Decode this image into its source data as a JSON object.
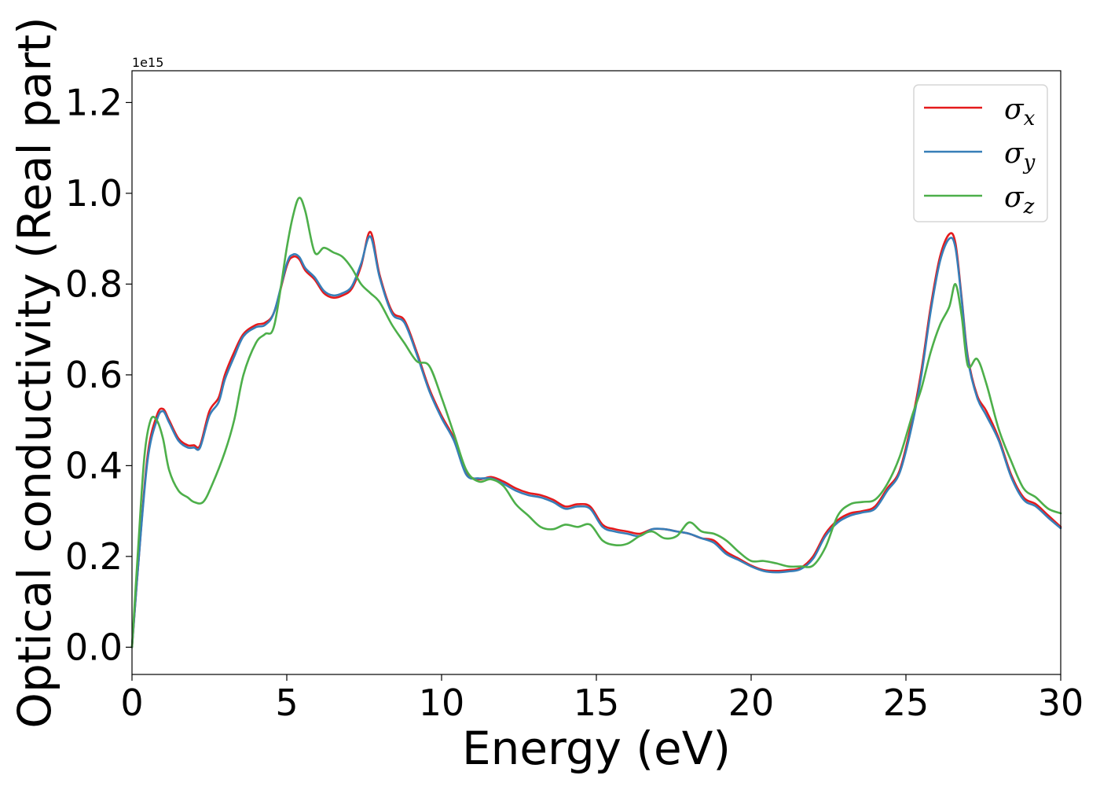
{
  "chart_data": {
    "type": "line",
    "title": "",
    "xlabel": "Energy (eV)",
    "ylabel": "Optical conductivity (Real part)",
    "y_offset_label": "1e15",
    "xlim": [
      0,
      30
    ],
    "ylim": [
      -0.06,
      1.27
    ],
    "xticks": [
      0,
      5,
      10,
      15,
      20,
      25,
      30
    ],
    "yticks": [
      0.0,
      0.2,
      0.4,
      0.6,
      0.8,
      1.0,
      1.2
    ],
    "xtick_labels": [
      "0",
      "5",
      "10",
      "15",
      "20",
      "25",
      "30"
    ],
    "ytick_labels": [
      "0.0",
      "0.2",
      "0.4",
      "0.6",
      "0.8",
      "1.0",
      "1.2"
    ],
    "grid": false,
    "legend_position": "top-right",
    "series": [
      {
        "name": "σx",
        "legend_symbol": "σ",
        "legend_subscript": "x",
        "color": "#e41a1c",
        "x": [
          0,
          0.2,
          0.5,
          0.8,
          1.0,
          1.2,
          1.5,
          1.8,
          2.0,
          2.2,
          2.5,
          2.8,
          3.0,
          3.3,
          3.6,
          4.0,
          4.3,
          4.6,
          5.0,
          5.2,
          5.4,
          5.6,
          5.9,
          6.2,
          6.5,
          6.8,
          7.1,
          7.4,
          7.7,
          8.0,
          8.4,
          8.8,
          9.2,
          9.6,
          10.0,
          10.4,
          10.8,
          11.2,
          11.6,
          12.0,
          12.4,
          12.8,
          13.2,
          13.6,
          14.0,
          14.4,
          14.8,
          15.2,
          15.6,
          16.0,
          16.4,
          16.8,
          17.2,
          17.6,
          18.0,
          18.4,
          18.8,
          19.2,
          19.6,
          20.0,
          20.4,
          20.8,
          21.2,
          21.6,
          22.0,
          22.4,
          22.8,
          23.2,
          23.6,
          24.0,
          24.4,
          24.8,
          25.2,
          25.5,
          25.8,
          26.1,
          26.4,
          26.6,
          26.8,
          27.0,
          27.3,
          27.6,
          28.0,
          28.4,
          28.8,
          29.2,
          29.6,
          30.0
        ],
        "y": [
          0.0,
          0.18,
          0.42,
          0.51,
          0.525,
          0.5,
          0.46,
          0.445,
          0.445,
          0.445,
          0.52,
          0.55,
          0.6,
          0.65,
          0.69,
          0.71,
          0.715,
          0.74,
          0.84,
          0.86,
          0.855,
          0.83,
          0.81,
          0.78,
          0.77,
          0.775,
          0.79,
          0.84,
          0.915,
          0.82,
          0.74,
          0.72,
          0.65,
          0.57,
          0.51,
          0.46,
          0.385,
          0.37,
          0.375,
          0.365,
          0.35,
          0.34,
          0.335,
          0.325,
          0.31,
          0.315,
          0.31,
          0.27,
          0.26,
          0.255,
          0.25,
          0.26,
          0.26,
          0.255,
          0.25,
          0.24,
          0.235,
          0.21,
          0.195,
          0.18,
          0.17,
          0.168,
          0.17,
          0.175,
          0.2,
          0.25,
          0.28,
          0.295,
          0.3,
          0.31,
          0.35,
          0.39,
          0.5,
          0.61,
          0.75,
          0.86,
          0.91,
          0.89,
          0.77,
          0.64,
          0.555,
          0.52,
          0.46,
          0.38,
          0.33,
          0.315,
          0.29,
          0.265
        ]
      },
      {
        "name": "σy",
        "legend_symbol": "σ",
        "legend_subscript": "y",
        "color": "#377eb8",
        "x": [
          0,
          0.2,
          0.5,
          0.8,
          1.0,
          1.2,
          1.5,
          1.8,
          2.0,
          2.2,
          2.5,
          2.8,
          3.0,
          3.3,
          3.6,
          4.0,
          4.3,
          4.6,
          5.0,
          5.2,
          5.4,
          5.6,
          5.9,
          6.2,
          6.5,
          6.8,
          7.1,
          7.4,
          7.7,
          8.0,
          8.4,
          8.8,
          9.2,
          9.6,
          10.0,
          10.4,
          10.8,
          11.2,
          11.6,
          12.0,
          12.4,
          12.8,
          13.2,
          13.6,
          14.0,
          14.4,
          14.8,
          15.2,
          15.6,
          16.0,
          16.4,
          16.8,
          17.2,
          17.6,
          18.0,
          18.4,
          18.8,
          19.2,
          19.6,
          20.0,
          20.4,
          20.8,
          21.2,
          21.6,
          22.0,
          22.4,
          22.8,
          23.2,
          23.6,
          24.0,
          24.4,
          24.8,
          25.2,
          25.5,
          25.8,
          26.1,
          26.4,
          26.6,
          26.8,
          27.0,
          27.3,
          27.6,
          28.0,
          28.4,
          28.8,
          29.2,
          29.6,
          30.0
        ],
        "y": [
          0.0,
          0.18,
          0.41,
          0.5,
          0.52,
          0.495,
          0.455,
          0.44,
          0.44,
          0.44,
          0.51,
          0.54,
          0.59,
          0.64,
          0.685,
          0.705,
          0.71,
          0.74,
          0.845,
          0.865,
          0.86,
          0.835,
          0.815,
          0.785,
          0.775,
          0.78,
          0.795,
          0.845,
          0.905,
          0.815,
          0.735,
          0.715,
          0.645,
          0.565,
          0.505,
          0.455,
          0.38,
          0.372,
          0.372,
          0.36,
          0.345,
          0.335,
          0.33,
          0.32,
          0.305,
          0.31,
          0.305,
          0.265,
          0.255,
          0.25,
          0.245,
          0.26,
          0.26,
          0.255,
          0.25,
          0.24,
          0.23,
          0.205,
          0.192,
          0.178,
          0.168,
          0.165,
          0.167,
          0.172,
          0.195,
          0.245,
          0.275,
          0.29,
          0.297,
          0.305,
          0.345,
          0.385,
          0.49,
          0.6,
          0.74,
          0.85,
          0.9,
          0.88,
          0.765,
          0.635,
          0.55,
          0.51,
          0.455,
          0.375,
          0.325,
          0.31,
          0.285,
          0.262
        ]
      },
      {
        "name": "σz",
        "legend_symbol": "σ",
        "legend_subscript": "z",
        "color": "#4daf4a",
        "x": [
          0,
          0.2,
          0.4,
          0.6,
          0.8,
          1.0,
          1.2,
          1.5,
          1.8,
          2.0,
          2.3,
          2.6,
          3.0,
          3.3,
          3.6,
          4.0,
          4.3,
          4.6,
          5.0,
          5.2,
          5.4,
          5.6,
          5.9,
          6.2,
          6.5,
          6.8,
          7.1,
          7.4,
          7.7,
          8.0,
          8.4,
          8.8,
          9.2,
          9.6,
          10.0,
          10.4,
          10.8,
          11.2,
          11.6,
          12.0,
          12.4,
          12.8,
          13.2,
          13.6,
          14.0,
          14.4,
          14.8,
          15.2,
          15.6,
          16.0,
          16.4,
          16.8,
          17.2,
          17.6,
          18.0,
          18.4,
          18.8,
          19.2,
          19.6,
          20.0,
          20.4,
          20.8,
          21.2,
          21.6,
          22.0,
          22.4,
          22.8,
          23.2,
          23.6,
          24.0,
          24.4,
          24.8,
          25.2,
          25.5,
          25.8,
          26.1,
          26.4,
          26.6,
          26.8,
          27.0,
          27.3,
          27.6,
          28.0,
          28.4,
          28.8,
          29.2,
          29.6,
          30.0
        ],
        "y": [
          0.0,
          0.22,
          0.42,
          0.5,
          0.5,
          0.46,
          0.39,
          0.345,
          0.33,
          0.32,
          0.32,
          0.36,
          0.43,
          0.5,
          0.6,
          0.67,
          0.69,
          0.71,
          0.88,
          0.95,
          0.99,
          0.96,
          0.87,
          0.88,
          0.87,
          0.86,
          0.835,
          0.8,
          0.78,
          0.76,
          0.71,
          0.67,
          0.63,
          0.62,
          0.55,
          0.47,
          0.39,
          0.365,
          0.37,
          0.355,
          0.315,
          0.29,
          0.265,
          0.26,
          0.27,
          0.265,
          0.27,
          0.235,
          0.225,
          0.228,
          0.245,
          0.255,
          0.24,
          0.245,
          0.275,
          0.255,
          0.25,
          0.235,
          0.21,
          0.19,
          0.19,
          0.185,
          0.178,
          0.178,
          0.18,
          0.22,
          0.29,
          0.315,
          0.32,
          0.325,
          0.36,
          0.42,
          0.51,
          0.57,
          0.65,
          0.71,
          0.75,
          0.8,
          0.73,
          0.62,
          0.635,
          0.58,
          0.48,
          0.41,
          0.35,
          0.33,
          0.305,
          0.295
        ]
      }
    ]
  }
}
